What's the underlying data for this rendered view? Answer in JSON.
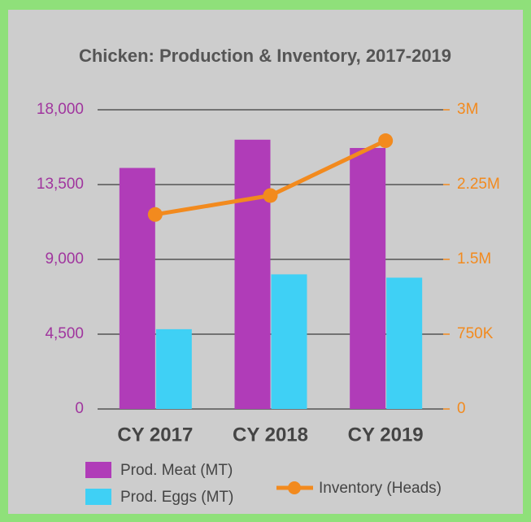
{
  "chart_data": {
    "type": "bar",
    "title": "Chicken: Production & Inventory, 2017-2019",
    "categories": [
      "CY 2017",
      "CY 2018",
      "CY 2019"
    ],
    "series": [
      {
        "name": "Prod. Meat (MT)",
        "color": "#b03cb8",
        "values": [
          14500,
          16200,
          15700
        ]
      },
      {
        "name": "Prod. Eggs (MT)",
        "color": "#3fd0f5",
        "values": [
          4800,
          8100,
          7900
        ]
      },
      {
        "name": "Inventory (Heads)",
        "color": "#f28a1e",
        "type": "line",
        "axis": "y2",
        "values": [
          1950000,
          2140000,
          2690000
        ]
      }
    ],
    "ylim": [
      0,
      18000
    ],
    "yticks": [
      0,
      {
        "value": 4500,
        "label": "4,500"
      },
      {
        "value": 9000,
        "label": "9,000"
      },
      {
        "value": 13500,
        "label": "13,500"
      },
      {
        "value": 18000,
        "label": "18,000"
      }
    ],
    "y2lim": [
      0,
      3000000
    ],
    "y2ticks": [
      0,
      {
        "value": 750000,
        "label": "750K"
      },
      {
        "value": 1500000,
        "label": "1.5M"
      },
      {
        "value": 2250000,
        "label": "2.25M"
      },
      {
        "value": 3000000,
        "label": "3M"
      }
    ],
    "grid": true
  }
}
